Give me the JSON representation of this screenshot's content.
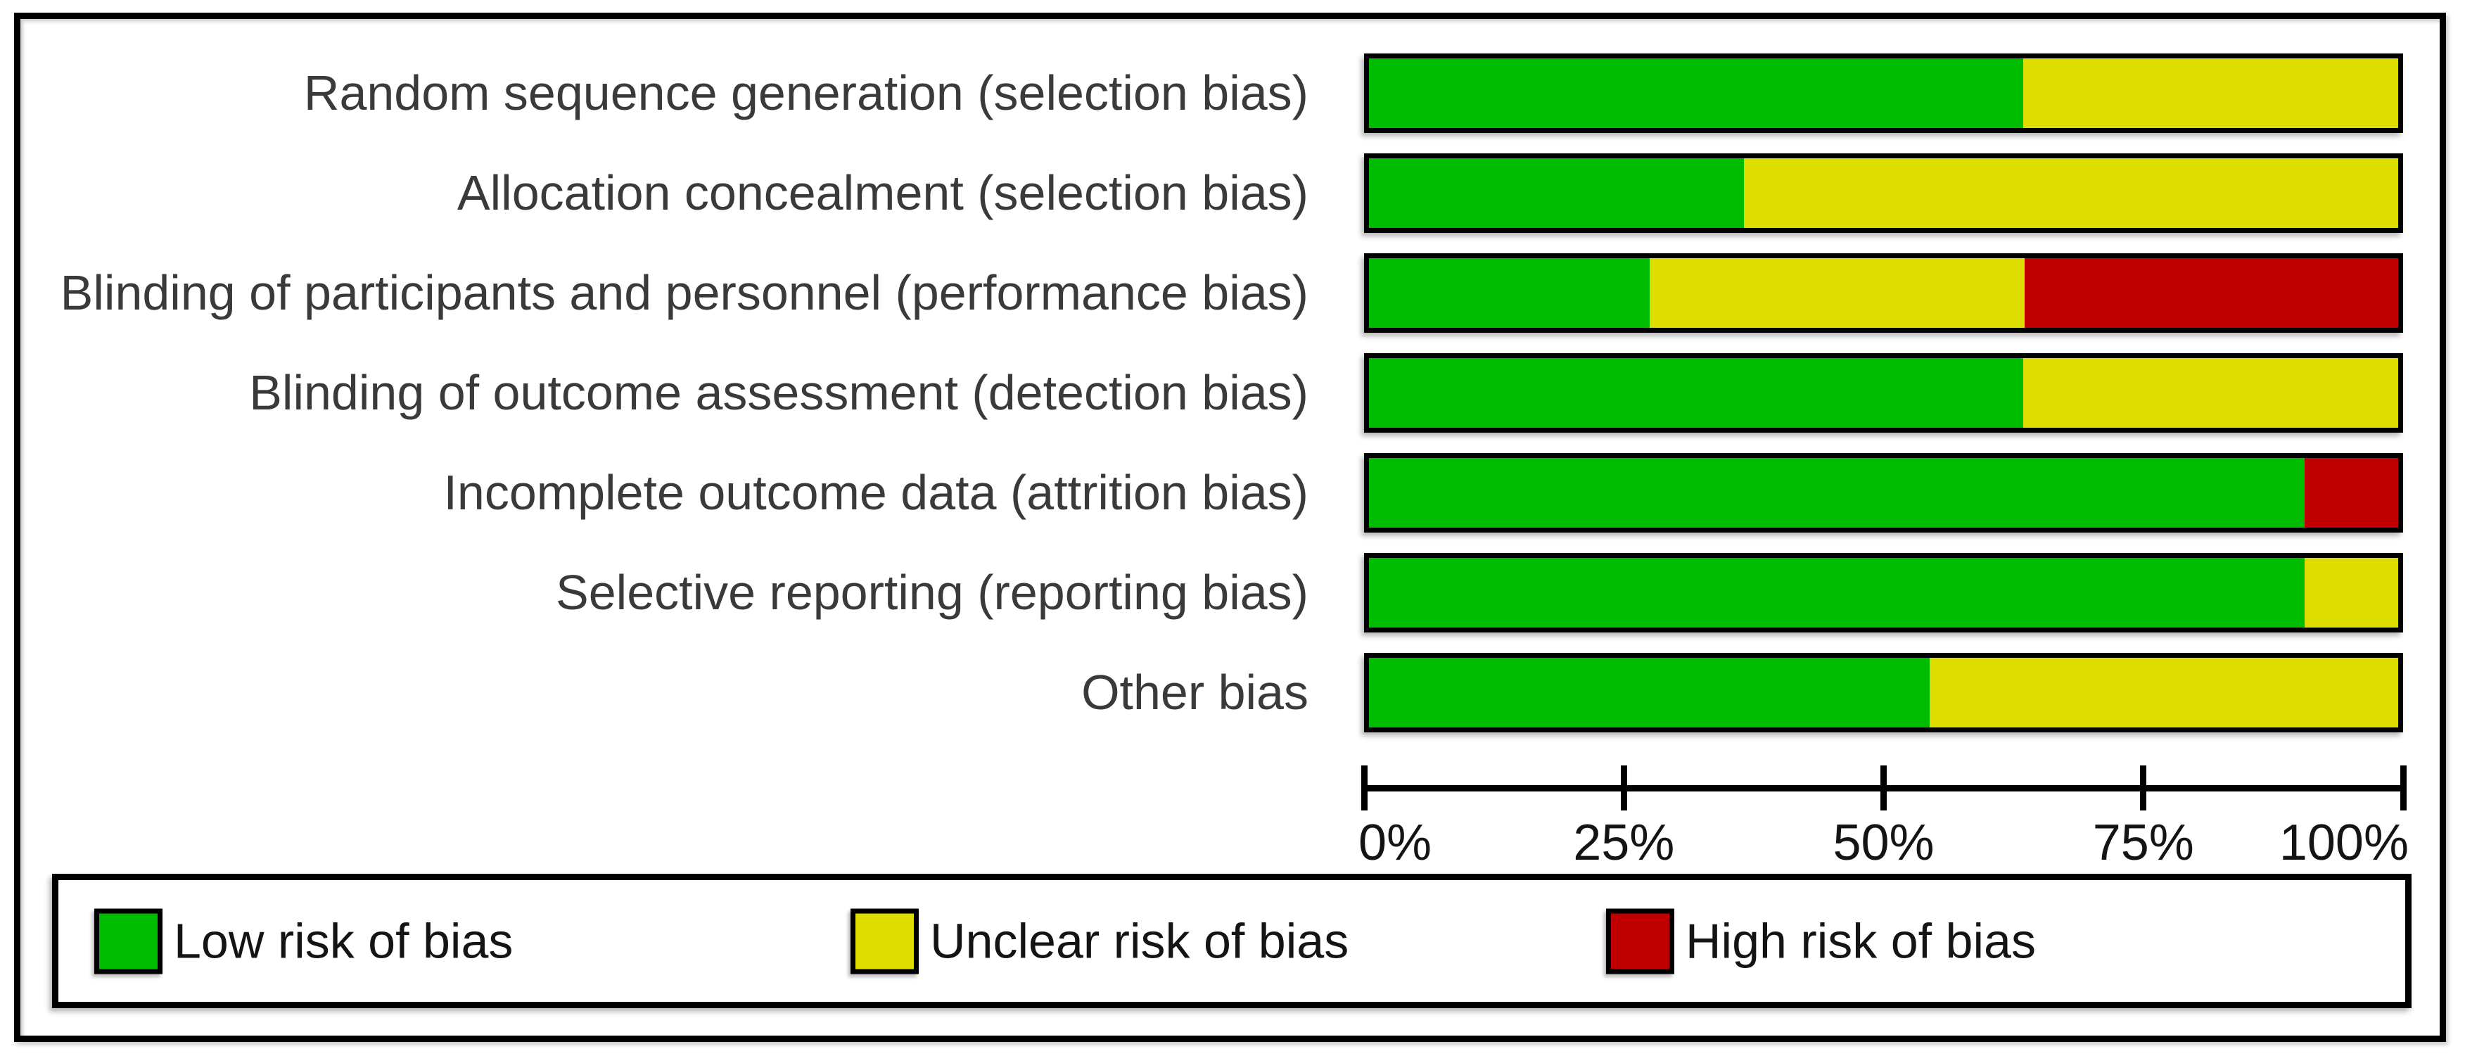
{
  "chart_data": {
    "type": "bar",
    "orientation": "horizontal",
    "stacked": true,
    "title": "",
    "xlabel": "",
    "ylabel": "",
    "xlim": [
      0,
      100
    ],
    "grid": false,
    "legend_position": "bottom",
    "x_ticks": [
      "0%",
      "25%",
      "50%",
      "75%",
      "100%"
    ],
    "x_tick_values": [
      0,
      25,
      50,
      75,
      100
    ],
    "categories": [
      "Random sequence generation (selection bias)",
      "Allocation concealment (selection bias)",
      "Blinding of participants and personnel (performance bias)",
      "Blinding of outcome assessment (detection bias)",
      "Incomplete outcome data (attrition bias)",
      "Selective reporting (reporting bias)",
      "Other bias"
    ],
    "series": [
      {
        "name": "Low risk of bias",
        "color": "#00BC00",
        "values": [
          63.6,
          36.4,
          27.3,
          63.6,
          90.9,
          90.9,
          54.5
        ]
      },
      {
        "name": "Unclear risk of bias",
        "color": "#DDDD00",
        "values": [
          36.4,
          63.6,
          36.4,
          36.4,
          0,
          9.1,
          45.5
        ]
      },
      {
        "name": "High risk of bias",
        "color": "#C00000",
        "values": [
          0,
          0,
          36.3,
          0,
          9.1,
          0,
          0
        ]
      }
    ]
  },
  "legend": {
    "items": [
      {
        "label": "Low risk of bias",
        "color": "#00BC00"
      },
      {
        "label": "Unclear risk of bias",
        "color": "#DDDD00"
      },
      {
        "label": "High risk of bias",
        "color": "#C00000"
      }
    ]
  }
}
